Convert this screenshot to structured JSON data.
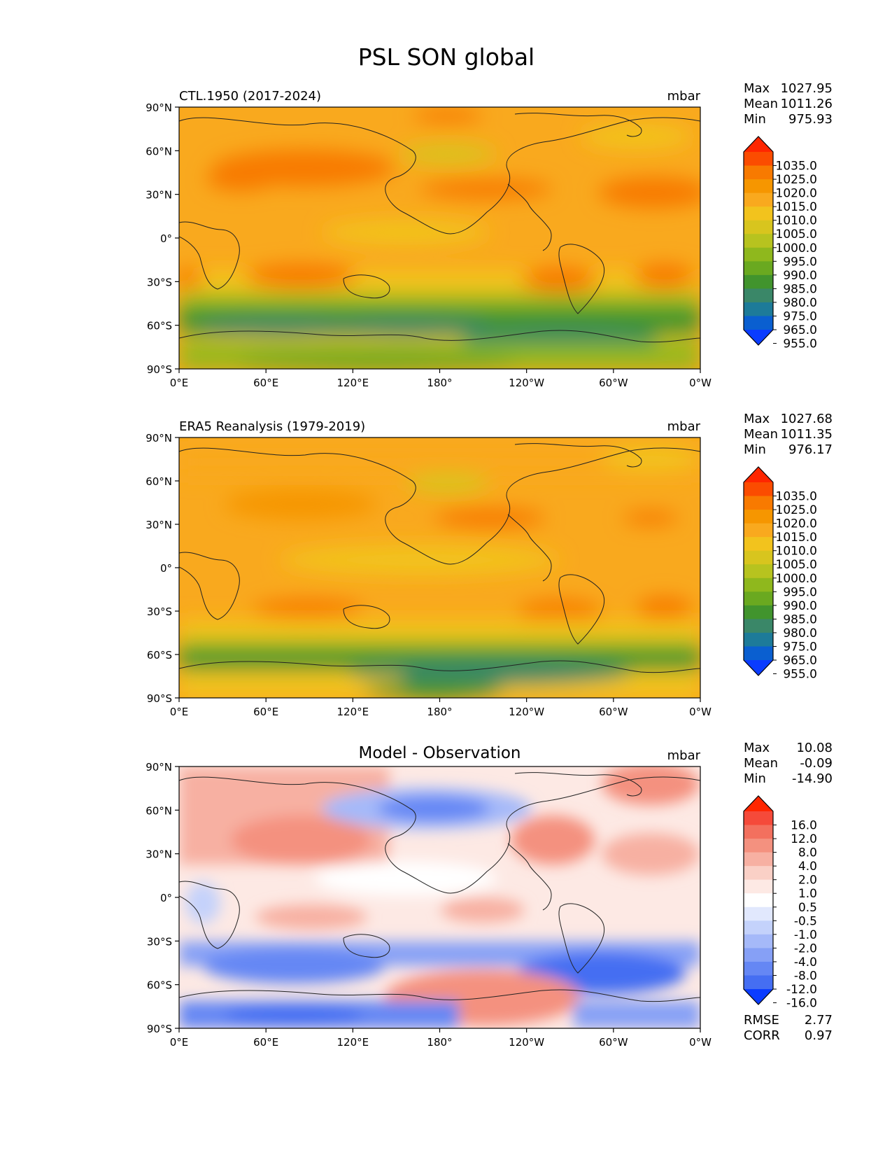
{
  "figure": {
    "title": "PSL SON global"
  },
  "x_ticks": [
    "0°E",
    "60°E",
    "120°E",
    "180°",
    "120°W",
    "60°W",
    "0°W"
  ],
  "y_ticks": [
    "90°N",
    "60°N",
    "30°N",
    "0°",
    "30°S",
    "60°S",
    "90°S"
  ],
  "panels": [
    {
      "left_title": "CTL.1950 (2017-2024)",
      "center_title": "",
      "units": "mbar",
      "stats": [
        {
          "label": "Max",
          "value": "1027.95"
        },
        {
          "label": "Mean",
          "value": "1011.26"
        },
        {
          "label": "Min",
          "value": "975.93"
        }
      ],
      "colorbar": {
        "labels": [
          "1035.0",
          "1025.0",
          "1020.0",
          "1015.0",
          "1010.0",
          "1005.0",
          "1000.0",
          "995.0",
          "990.0",
          "985.0",
          "980.0",
          "975.0",
          "965.0",
          "955.0"
        ],
        "colors": [
          "#ff2600",
          "#fb4c00",
          "#f87a00",
          "#f69600",
          "#f9a91e",
          "#f2c31d",
          "#d8c51e",
          "#b7c31f",
          "#8fb81d",
          "#6aa920",
          "#41942d",
          "#3a8768",
          "#1d7b99",
          "#0a5fd0",
          "#0a3cff"
        ]
      }
    },
    {
      "left_title": "ERA5 Reanalysis (1979-2019)",
      "center_title": "",
      "units": "mbar",
      "stats": [
        {
          "label": "Max",
          "value": "1027.68"
        },
        {
          "label": "Mean",
          "value": "1011.35"
        },
        {
          "label": "Min",
          "value": "976.17"
        }
      ],
      "colorbar": {
        "labels": [
          "1035.0",
          "1025.0",
          "1020.0",
          "1015.0",
          "1010.0",
          "1005.0",
          "1000.0",
          "995.0",
          "990.0",
          "985.0",
          "980.0",
          "975.0",
          "965.0",
          "955.0"
        ],
        "colors": [
          "#ff2600",
          "#fb4c00",
          "#f87a00",
          "#f69600",
          "#f9a91e",
          "#f2c31d",
          "#d8c51e",
          "#b7c31f",
          "#8fb81d",
          "#6aa920",
          "#41942d",
          "#3a8768",
          "#1d7b99",
          "#0a5fd0",
          "#0a3cff"
        ]
      }
    },
    {
      "left_title": "",
      "center_title": "Model - Observation",
      "units": "mbar",
      "stats": [
        {
          "label": "Max",
          "value": "10.08"
        },
        {
          "label": "Mean",
          "value": "-0.09"
        },
        {
          "label": "Min",
          "value": "-14.90"
        }
      ],
      "extra_stats": [
        {
          "label": "RMSE",
          "value": "2.77"
        },
        {
          "label": "CORR",
          "value": "0.97"
        }
      ],
      "colorbar": {
        "labels": [
          "16.0",
          "12.0",
          "8.0",
          "4.0",
          "2.0",
          "1.0",
          "0.5",
          "-0.5",
          "-1.0",
          "-2.0",
          "-4.0",
          "-8.0",
          "-12.0",
          "-16.0"
        ],
        "colors": [
          "#ff2600",
          "#f54a3a",
          "#f3705e",
          "#f4917f",
          "#f7b0a2",
          "#fad0c6",
          "#fde9e4",
          "#ffffff",
          "#e1e8fd",
          "#c4d2fb",
          "#a5b9f9",
          "#86a0f6",
          "#6587f4",
          "#456ef2",
          "#0a3cff"
        ]
      }
    }
  ]
}
